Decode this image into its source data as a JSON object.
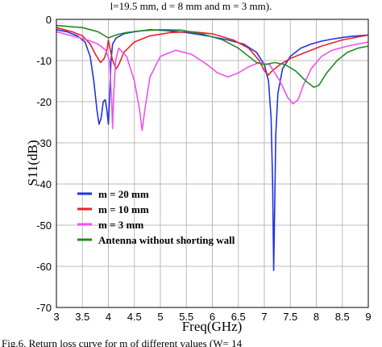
{
  "caption_top": "l=19.5 mm, d = 8 mm and m = 3 mm).",
  "caption_bottom": "Fig.6. Return loss curve for m of different values (W= 14",
  "chart_data": {
    "type": "line",
    "xlabel": "Freq(GHz)",
    "ylabel": "S11(dB)",
    "xlim": [
      3,
      9
    ],
    "ylim": [
      -70,
      0
    ],
    "xticks": [
      "3",
      "3.5",
      "4",
      "4.5",
      "5",
      "5.5",
      "6",
      "6.5",
      "7",
      "7.5",
      "8",
      "8.5",
      "9"
    ],
    "yticks": [
      "0",
      "-10",
      "-20",
      "-30",
      "-40",
      "-50",
      "-60",
      "-70"
    ],
    "grid": true,
    "legend_position": "bottom-left",
    "series": [
      {
        "name": "m = 20 mm",
        "color": "#2233dd",
        "x": [
          3.0,
          3.2,
          3.4,
          3.55,
          3.65,
          3.72,
          3.78,
          3.82,
          3.86,
          3.9,
          3.94,
          3.97,
          4.0,
          4.02,
          4.05,
          4.08,
          4.15,
          4.3,
          4.5,
          4.8,
          5.1,
          5.5,
          5.9,
          6.3,
          6.6,
          6.85,
          7.0,
          7.08,
          7.13,
          7.16,
          7.18,
          7.2,
          7.22,
          7.26,
          7.35,
          7.5,
          7.7,
          7.9,
          8.1,
          8.3,
          8.5,
          8.7,
          9.0
        ],
        "y": [
          -2.5,
          -3,
          -4,
          -5.5,
          -9,
          -15,
          -22,
          -25.5,
          -24,
          -20,
          -19.5,
          -22,
          -25.5,
          -20,
          -10,
          -6,
          -4.5,
          -3.5,
          -3,
          -2.5,
          -2.7,
          -3.2,
          -4,
          -5,
          -6,
          -8,
          -11,
          -15,
          -24,
          -40,
          -61,
          -45,
          -28,
          -18,
          -12,
          -9,
          -7,
          -6,
          -5.3,
          -4.8,
          -4.4,
          -4.1,
          -3.8
        ]
      },
      {
        "name": "m = 10 mm",
        "color": "#e8232a",
        "x": [
          3.0,
          3.3,
          3.5,
          3.65,
          3.75,
          3.85,
          3.92,
          3.97,
          4.0,
          4.03,
          4.08,
          4.15,
          4.2,
          4.3,
          4.5,
          4.8,
          5.2,
          5.6,
          6.0,
          6.4,
          6.7,
          6.9,
          7.0,
          7.08,
          7.15,
          7.3,
          7.5,
          7.8,
          8.1,
          8.5,
          9.0
        ],
        "y": [
          -2,
          -3,
          -4,
          -6,
          -8.5,
          -10.5,
          -9.5,
          -7.5,
          -5,
          -7,
          -10,
          -12,
          -11,
          -8,
          -5.5,
          -4,
          -3.2,
          -3,
          -3.5,
          -5,
          -7,
          -10,
          -12.5,
          -13.5,
          -12.5,
          -11,
          -9.5,
          -8,
          -6.5,
          -5,
          -3.8
        ]
      },
      {
        "name": "m = 3 mm",
        "color": "#f050f0",
        "x": [
          3.0,
          3.3,
          3.6,
          3.8,
          3.95,
          4.02,
          4.06,
          4.08,
          4.1,
          4.14,
          4.2,
          4.35,
          4.5,
          4.6,
          4.65,
          4.7,
          4.8,
          5.0,
          5.3,
          5.6,
          5.9,
          6.1,
          6.3,
          6.5,
          6.7,
          6.9,
          7.1,
          7.3,
          7.45,
          7.55,
          7.65,
          7.75,
          7.9,
          8.1,
          8.3,
          8.6,
          9.0
        ],
        "y": [
          -3,
          -4,
          -5,
          -6,
          -7.5,
          -10,
          -19,
          -26.5,
          -19,
          -10,
          -7,
          -9,
          -15,
          -22,
          -27,
          -22,
          -14,
          -9,
          -7.5,
          -8.5,
          -11,
          -13,
          -14,
          -13,
          -11.5,
          -10.5,
          -11,
          -15,
          -19,
          -20.5,
          -19.5,
          -16,
          -12,
          -9,
          -7.5,
          -6.5,
          -5.5
        ]
      },
      {
        "name": "Antenna without shorting wall",
        "color": "#228b22",
        "x": [
          3.0,
          3.5,
          3.8,
          4.0,
          4.1,
          4.2,
          4.35,
          4.6,
          5.0,
          5.4,
          5.8,
          6.2,
          6.5,
          6.7,
          6.85,
          7.0,
          7.2,
          7.4,
          7.6,
          7.8,
          7.95,
          8.05,
          8.2,
          8.4,
          8.6,
          8.8,
          9.0
        ],
        "y": [
          -1.5,
          -2,
          -3,
          -4.5,
          -4,
          -3.6,
          -3.2,
          -2.8,
          -2.5,
          -2.6,
          -3.5,
          -5,
          -7,
          -9,
          -10.5,
          -11,
          -10.5,
          -11,
          -12.5,
          -15,
          -16.5,
          -16,
          -13,
          -10,
          -8,
          -7,
          -6.5
        ]
      }
    ]
  }
}
